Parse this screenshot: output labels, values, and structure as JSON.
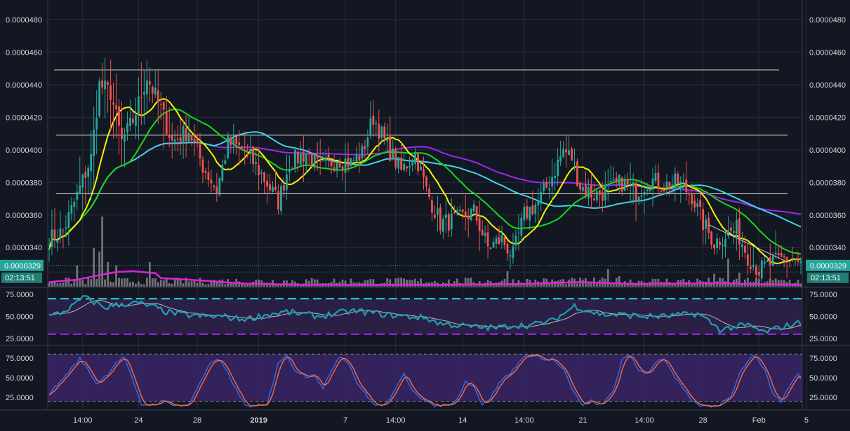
{
  "colors": {
    "background": "#131722",
    "grid": "#2a2e39",
    "axis_text": "#d1d4dc",
    "up": "#26a69a",
    "down": "#ef5350",
    "ma_fast": "#f5f500",
    "ma_mid": "#19d619",
    "ma_slow": "#3fd2e6",
    "ma_long": "#9c27f0",
    "volume": "#8a8a8a",
    "volume_ma": "#e020e0",
    "rsi_line": "#1e9fb0",
    "rsi_signal": "#b8b8b8",
    "rsi_band": "#2b1f45",
    "rsi_upper": "#26d8e8",
    "rsi_lower": "#9c27f0",
    "stoch_k": "#2e6ff0",
    "stoch_d": "#ff6b3d",
    "stoch_band": "#3a2566",
    "price_tag": "#26a69a",
    "price_tag_dark": "#1f7e75"
  },
  "chart_data": [
    {
      "type": "candlestick",
      "panel": "price",
      "ylim": [
        3.16e-05,
        4.92e-05
      ],
      "y_ticks": [
        "0.0000340",
        "0.0000360",
        "0.0000380",
        "0.0000400",
        "0.0000420",
        "0.0000440",
        "0.0000460",
        "0.0000480"
      ],
      "x_tick_labels": [
        "14:00",
        "24",
        "28",
        "2019",
        "7",
        "14:00",
        "14",
        "14:00",
        "21",
        "14:00",
        "28",
        "Feb",
        "5"
      ],
      "price_tag": "0.0000329",
      "countdown": "02:13:51",
      "current_price": 3.29e-05,
      "horizontal_levels": [
        4.49e-05,
        4.09e-05,
        3.73e-05
      ],
      "trendline": [
        [
          3.54e-05
        ],
        [
          3.31e-05
        ]
      ],
      "anchors": [
        [
          0,
          3.45e-05
        ],
        [
          5,
          3.5e-05
        ],
        [
          10,
          3.72e-05
        ],
        [
          15,
          3.95e-05
        ],
        [
          18,
          4.4e-05
        ],
        [
          22,
          4.35e-05
        ],
        [
          26,
          4.05e-05
        ],
        [
          30,
          4.18e-05
        ],
        [
          35,
          4.45e-05
        ],
        [
          40,
          4.25e-05
        ],
        [
          44,
          4.05e-05
        ],
        [
          50,
          4.12e-05
        ],
        [
          55,
          3.9e-05
        ],
        [
          60,
          3.75e-05
        ],
        [
          64,
          4.04e-05
        ],
        [
          70,
          4e-05
        ],
        [
          76,
          3.85e-05
        ],
        [
          82,
          3.68e-05
        ],
        [
          86,
          3.92e-05
        ],
        [
          92,
          3.98e-05
        ],
        [
          97,
          3.88e-05
        ],
        [
          103,
          3.95e-05
        ],
        [
          108,
          3.92e-05
        ],
        [
          112,
          3.98e-05
        ],
        [
          116,
          4.2e-05
        ],
        [
          121,
          4.02e-05
        ],
        [
          126,
          3.87e-05
        ],
        [
          131,
          3.98e-05
        ],
        [
          135,
          3.75e-05
        ],
        [
          140,
          3.55e-05
        ],
        [
          146,
          3.57e-05
        ],
        [
          152,
          3.62e-05
        ],
        [
          157,
          3.4e-05
        ],
        [
          162,
          3.45e-05
        ],
        [
          166,
          3.35e-05
        ],
        [
          170,
          3.6e-05
        ],
        [
          175,
          3.68e-05
        ],
        [
          179,
          3.8e-05
        ],
        [
          184,
          4e-05
        ],
        [
          187,
          3.95e-05
        ],
        [
          190,
          3.78e-05
        ],
        [
          195,
          3.72e-05
        ],
        [
          200,
          3.75e-05
        ],
        [
          205,
          3.8e-05
        ],
        [
          210,
          3.74e-05
        ],
        [
          215,
          3.82e-05
        ],
        [
          220,
          3.78e-05
        ],
        [
          225,
          3.8e-05
        ],
        [
          230,
          3.72e-05
        ],
        [
          234,
          3.55e-05
        ],
        [
          238,
          3.43e-05
        ],
        [
          242,
          3.48e-05
        ],
        [
          246,
          3.51e-05
        ],
        [
          250,
          3.35e-05
        ],
        [
          254,
          3.26e-05
        ],
        [
          258,
          3.3e-05
        ],
        [
          263,
          3.33e-05
        ],
        [
          267,
          3.32e-05
        ],
        [
          269,
          3.29e-05
        ]
      ],
      "volume_spikes": [
        [
          19,
          1.0
        ],
        [
          16,
          0.55
        ],
        [
          18,
          0.5
        ],
        [
          21,
          0.35
        ],
        [
          36,
          0.35
        ],
        [
          10,
          0.3
        ],
        [
          24,
          0.3
        ],
        [
          164,
          0.22
        ],
        [
          200,
          0.25
        ],
        [
          204,
          0.15
        ],
        [
          238,
          0.18
        ],
        [
          243,
          0.4
        ],
        [
          247,
          0.2
        ]
      ],
      "volume_ma": [
        [
          0,
          0.12
        ],
        [
          10,
          0.18
        ],
        [
          18,
          0.3
        ],
        [
          24,
          0.38
        ],
        [
          30,
          0.4
        ],
        [
          38,
          0.35
        ],
        [
          40,
          0.22
        ],
        [
          50,
          0.18
        ],
        [
          60,
          0.13
        ],
        [
          70,
          0.08
        ],
        [
          90,
          0.05
        ],
        [
          140,
          0.05
        ],
        [
          170,
          0.07
        ],
        [
          190,
          0.12
        ],
        [
          210,
          0.07
        ],
        [
          240,
          0.09
        ],
        [
          255,
          0.06
        ],
        [
          269,
          0.05
        ]
      ]
    },
    {
      "type": "line",
      "panel": "rsi",
      "ylim": [
        18,
        82
      ],
      "y_ticks": [
        "25.0000",
        "50.0000",
        "75.0000"
      ],
      "bands": [
        30,
        70
      ],
      "anchors": [
        [
          0,
          50
        ],
        [
          5,
          55
        ],
        [
          10,
          65
        ],
        [
          12,
          72
        ],
        [
          15,
          68
        ],
        [
          20,
          60
        ],
        [
          26,
          64
        ],
        [
          32,
          65
        ],
        [
          38,
          60
        ],
        [
          42,
          55
        ],
        [
          48,
          52
        ],
        [
          55,
          50
        ],
        [
          62,
          50
        ],
        [
          68,
          47
        ],
        [
          72,
          48
        ],
        [
          78,
          52
        ],
        [
          85,
          55
        ],
        [
          92,
          52
        ],
        [
          97,
          50
        ],
        [
          102,
          53
        ],
        [
          108,
          56
        ],
        [
          114,
          55
        ],
        [
          120,
          52
        ],
        [
          128,
          50
        ],
        [
          135,
          48
        ],
        [
          140,
          42
        ],
        [
          146,
          40
        ],
        [
          152,
          38
        ],
        [
          160,
          37
        ],
        [
          166,
          40
        ],
        [
          172,
          40
        ],
        [
          180,
          45
        ],
        [
          185,
          55
        ],
        [
          188,
          62
        ],
        [
          192,
          57
        ],
        [
          198,
          52
        ],
        [
          205,
          52
        ],
        [
          212,
          50
        ],
        [
          220,
          50
        ],
        [
          228,
          52
        ],
        [
          232,
          53
        ],
        [
          236,
          45
        ],
        [
          240,
          35
        ],
        [
          245,
          38
        ],
        [
          250,
          40
        ],
        [
          253,
          36
        ],
        [
          256,
          32
        ],
        [
          262,
          38
        ],
        [
          266,
          41
        ],
        [
          269,
          43
        ]
      ]
    },
    {
      "type": "line",
      "panel": "stochastic",
      "ylim": [
        10,
        90
      ],
      "y_ticks": [
        "25.0000",
        "50.0000",
        "75.0000"
      ],
      "bands": [
        20,
        80
      ],
      "anchors": [
        [
          0,
          30
        ],
        [
          4,
          45
        ],
        [
          8,
          62
        ],
        [
          11,
          74
        ],
        [
          14,
          60
        ],
        [
          17,
          42
        ],
        [
          21,
          55
        ],
        [
          24,
          70
        ],
        [
          27,
          76
        ],
        [
          30,
          45
        ],
        [
          33,
          16
        ],
        [
          37,
          16
        ],
        [
          41,
          20
        ],
        [
          46,
          15
        ],
        [
          50,
          15
        ],
        [
          54,
          45
        ],
        [
          58,
          70
        ],
        [
          61,
          72
        ],
        [
          64,
          55
        ],
        [
          67,
          35
        ],
        [
          70,
          15
        ],
        [
          74,
          14
        ],
        [
          78,
          15
        ],
        [
          82,
          70
        ],
        [
          85,
          78
        ],
        [
          88,
          60
        ],
        [
          92,
          52
        ],
        [
          95,
          55
        ],
        [
          98,
          35
        ],
        [
          101,
          60
        ],
        [
          104,
          78
        ],
        [
          107,
          70
        ],
        [
          110,
          45
        ],
        [
          114,
          25
        ],
        [
          117,
          15
        ],
        [
          120,
          15
        ],
        [
          124,
          35
        ],
        [
          127,
          55
        ],
        [
          130,
          35
        ],
        [
          134,
          22
        ],
        [
          137,
          15
        ],
        [
          141,
          15
        ],
        [
          145,
          18
        ],
        [
          149,
          45
        ],
        [
          152,
          40
        ],
        [
          155,
          15
        ],
        [
          158,
          25
        ],
        [
          162,
          48
        ],
        [
          165,
          55
        ],
        [
          168,
          70
        ],
        [
          171,
          78
        ],
        [
          174,
          80
        ],
        [
          177,
          72
        ],
        [
          180,
          74
        ],
        [
          184,
          60
        ],
        [
          188,
          30
        ],
        [
          191,
          15
        ],
        [
          194,
          20
        ],
        [
          198,
          15
        ],
        [
          202,
          35
        ],
        [
          205,
          72
        ],
        [
          208,
          78
        ],
        [
          211,
          60
        ],
        [
          214,
          55
        ],
        [
          217,
          70
        ],
        [
          220,
          75
        ],
        [
          223,
          55
        ],
        [
          226,
          40
        ],
        [
          229,
          25
        ],
        [
          232,
          15
        ],
        [
          236,
          14
        ],
        [
          240,
          16
        ],
        [
          244,
          28
        ],
        [
          247,
          55
        ],
        [
          250,
          72
        ],
        [
          253,
          78
        ],
        [
          256,
          60
        ],
        [
          259,
          30
        ],
        [
          262,
          20
        ],
        [
          265,
          40
        ],
        [
          268,
          55
        ],
        [
          269,
          48
        ]
      ]
    }
  ]
}
